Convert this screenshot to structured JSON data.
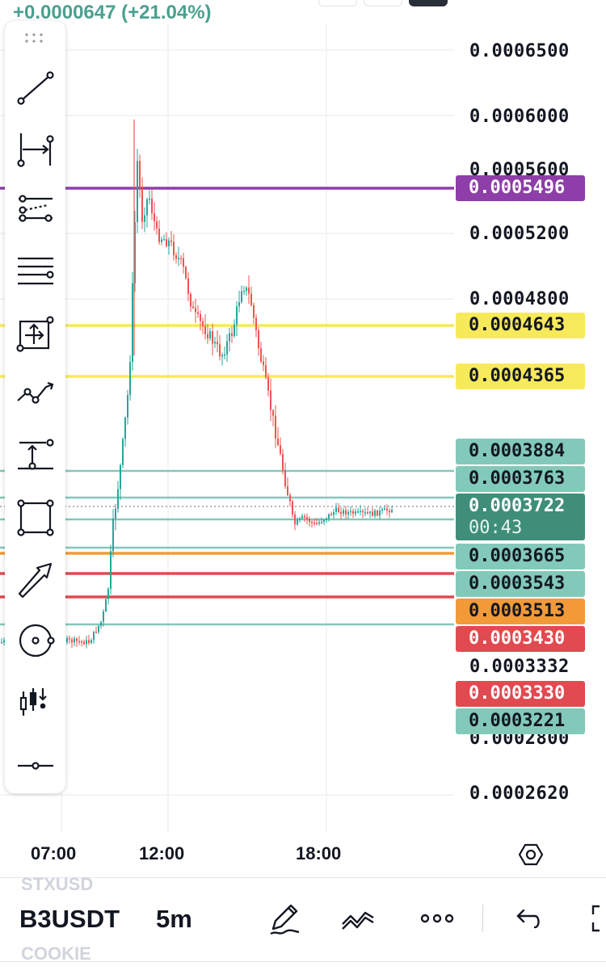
{
  "header": {
    "change": "+0.0000647 (+21.04%)"
  },
  "price_axis": {
    "labels": [
      "0.0006500",
      "0.0006000",
      "0.0005600",
      "0.0005200",
      "0.0004800",
      "0.0003332",
      "0.0002800",
      "0.0002620"
    ]
  },
  "price_tags": {
    "purple": "0.0005496",
    "yellow_1": "0.0004643",
    "yellow_2": "0.0004365",
    "teal_1": "0.0003884",
    "teal_2": "0.0003763",
    "current": "0.0003722",
    "countdown": "00:43",
    "teal_3": "0.0003665",
    "teal_4": "0.0003543",
    "orange": "0.0003513",
    "red_1": "0.0003430",
    "red_2": "0.0003330",
    "teal_5": "0.0003221"
  },
  "time_axis": {
    "labels": [
      "07:00",
      "12:00",
      "18:00"
    ]
  },
  "toolbar": {
    "tools": [
      "trend-line-icon",
      "date-range-icon",
      "regression-icon",
      "horizontal-lines-icon",
      "fixed-range-icon",
      "path-icon",
      "anchored-text-icon",
      "rectangle-icon",
      "arrow-icon",
      "circle-icon",
      "long-position-icon",
      "horizontal-ray-icon"
    ]
  },
  "bottom_bar": {
    "prev_symbol": "STXUSD",
    "symbol": "B3USDT",
    "next_symbol": "COOKIE",
    "interval": "5m"
  },
  "colors": {
    "up": "#26a69a",
    "down": "#ef5350",
    "purple": "#8e3ea8",
    "yellow": "#f7ea5a",
    "teal": "#82c9b9",
    "orange": "#f29a38",
    "red": "#e04a50",
    "current": "#3f8e79"
  }
}
